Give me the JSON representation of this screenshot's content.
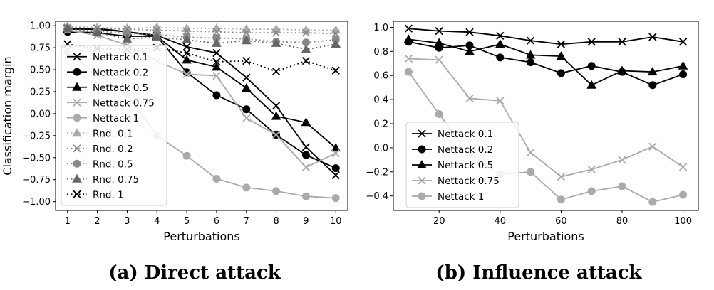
{
  "chart_data": [
    {
      "type": "line",
      "caption": "(a) Direct attack",
      "xlabel": "Perturbations",
      "ylabel": "Classification margin",
      "xlim": [
        0.6,
        10.4
      ],
      "ylim": [
        -1.1,
        1.05
      ],
      "xticks": [
        1,
        2,
        3,
        4,
        5,
        6,
        7,
        8,
        9,
        10
      ],
      "yticks": [
        1.0,
        0.75,
        0.5,
        0.25,
        0.0,
        -0.25,
        -0.5,
        -0.75,
        -1.0
      ],
      "ytick_labels": [
        "1.00",
        "0.75",
        "0.50",
        "0.25",
        "0.00",
        "−0.25",
        "−0.50",
        "−0.75",
        "−1.00"
      ],
      "xtick_labels": [
        "1",
        "2",
        "3",
        "4",
        "5",
        "6",
        "7",
        "8",
        "9",
        "10"
      ],
      "legend_position": "left",
      "x": [
        1,
        2,
        3,
        4,
        5,
        6,
        7,
        8,
        9,
        10
      ],
      "series": [
        {
          "name": "Nettack 0.1",
          "color": "#000000",
          "marker": "x",
          "dash": "solid",
          "values": [
            0.97,
            0.97,
            0.93,
            0.89,
            0.76,
            0.69,
            0.41,
            0.09,
            -0.38,
            -0.7
          ]
        },
        {
          "name": "Nettack 0.2",
          "color": "#000000",
          "marker": "circle",
          "dash": "solid",
          "values": [
            0.93,
            0.92,
            0.88,
            0.88,
            0.47,
            0.21,
            0.05,
            -0.24,
            -0.47,
            -0.62
          ]
        },
        {
          "name": "Nettack 0.5",
          "color": "#000000",
          "marker": "triangle",
          "dash": "solid",
          "values": [
            0.96,
            0.96,
            0.93,
            0.88,
            0.61,
            0.53,
            0.29,
            -0.03,
            -0.1,
            -0.39
          ]
        },
        {
          "name": "Nettack 0.75",
          "color": "#aaaaaa",
          "marker": "x",
          "dash": "solid",
          "values": [
            0.95,
            0.89,
            0.78,
            0.6,
            0.45,
            0.43,
            -0.05,
            -0.24,
            -0.61,
            -0.45
          ]
        },
        {
          "name": "Nettack 1",
          "color": "#aaaaaa",
          "marker": "circle",
          "dash": "solid",
          "values": [
            0.7,
            0.45,
            0.22,
            -0.25,
            -0.48,
            -0.74,
            -0.84,
            -0.88,
            -0.94,
            -0.96
          ]
        },
        {
          "name": "Rnd. 0.1",
          "color": "#aaaaaa",
          "marker": "triangle",
          "dash": "dotted",
          "values": [
            0.99,
            0.98,
            0.97,
            0.98,
            0.97,
            0.97,
            0.96,
            0.96,
            0.95,
            0.95
          ]
        },
        {
          "name": "Rnd. 0.2",
          "color": "#888888",
          "marker": "x",
          "dash": "dotted",
          "values": [
            0.98,
            0.97,
            0.96,
            0.95,
            0.94,
            0.93,
            0.92,
            0.92,
            0.92,
            0.91
          ]
        },
        {
          "name": "Rnd. 0.5",
          "color": "#888888",
          "marker": "circle",
          "dash": "dotted",
          "values": [
            0.96,
            0.94,
            0.91,
            0.9,
            0.87,
            0.86,
            0.85,
            0.82,
            0.81,
            0.84
          ]
        },
        {
          "name": "Rnd. 0.75",
          "color": "#666666",
          "marker": "triangle",
          "dash": "dotted",
          "values": [
            0.97,
            0.92,
            0.85,
            0.87,
            0.84,
            0.8,
            0.83,
            0.8,
            0.73,
            0.79
          ]
        },
        {
          "name": "Rnd. 1",
          "color": "#000000",
          "marker": "x",
          "dash": "dotted",
          "values": [
            0.79,
            0.74,
            0.73,
            0.75,
            0.69,
            0.59,
            0.6,
            0.48,
            0.6,
            0.49
          ]
        }
      ]
    },
    {
      "type": "line",
      "caption": "(b) Influence attack",
      "xlabel": "Perturbations",
      "ylabel": "",
      "xlim": [
        5,
        105
      ],
      "ylim": [
        -0.52,
        1.05
      ],
      "xticks": [
        20,
        40,
        60,
        80,
        100
      ],
      "xtick_labels": [
        "20",
        "40",
        "60",
        "80",
        "100"
      ],
      "yticks": [
        1.0,
        0.8,
        0.6,
        0.4,
        0.2,
        0.0,
        -0.2,
        -0.4
      ],
      "ytick_labels": [
        "1.0",
        "0.8",
        "0.6",
        "0.4",
        "0.2",
        "0.0",
        "−0.2",
        "−0.4"
      ],
      "legend_position": "lower-left",
      "x": [
        10,
        20,
        30,
        40,
        50,
        60,
        70,
        80,
        90,
        100
      ],
      "series": [
        {
          "name": "Nettack 0.1",
          "color": "#000000",
          "marker": "x",
          "dash": "solid",
          "values": [
            0.99,
            0.97,
            0.96,
            0.93,
            0.89,
            0.86,
            0.88,
            0.88,
            0.92,
            0.88
          ]
        },
        {
          "name": "Nettack 0.2",
          "color": "#000000",
          "marker": "circle",
          "dash": "solid",
          "values": [
            0.88,
            0.83,
            0.85,
            0.75,
            0.71,
            0.62,
            0.68,
            0.63,
            0.52,
            0.61
          ]
        },
        {
          "name": "Nettack 0.5",
          "color": "#000000",
          "marker": "triangle",
          "dash": "solid",
          "values": [
            0.9,
            0.87,
            0.8,
            0.86,
            0.77,
            0.76,
            0.52,
            0.64,
            0.63,
            0.68
          ]
        },
        {
          "name": "Nettack 0.75",
          "color": "#aaaaaa",
          "marker": "x",
          "dash": "solid",
          "values": [
            0.74,
            0.73,
            0.41,
            0.39,
            -0.04,
            -0.24,
            -0.18,
            -0.1,
            0.01,
            -0.16
          ]
        },
        {
          "name": "Nettack 1",
          "color": "#aaaaaa",
          "marker": "circle",
          "dash": "solid",
          "values": [
            0.63,
            0.28,
            -0.05,
            -0.22,
            -0.2,
            -0.43,
            -0.36,
            -0.32,
            -0.45,
            -0.39
          ]
        }
      ]
    }
  ]
}
